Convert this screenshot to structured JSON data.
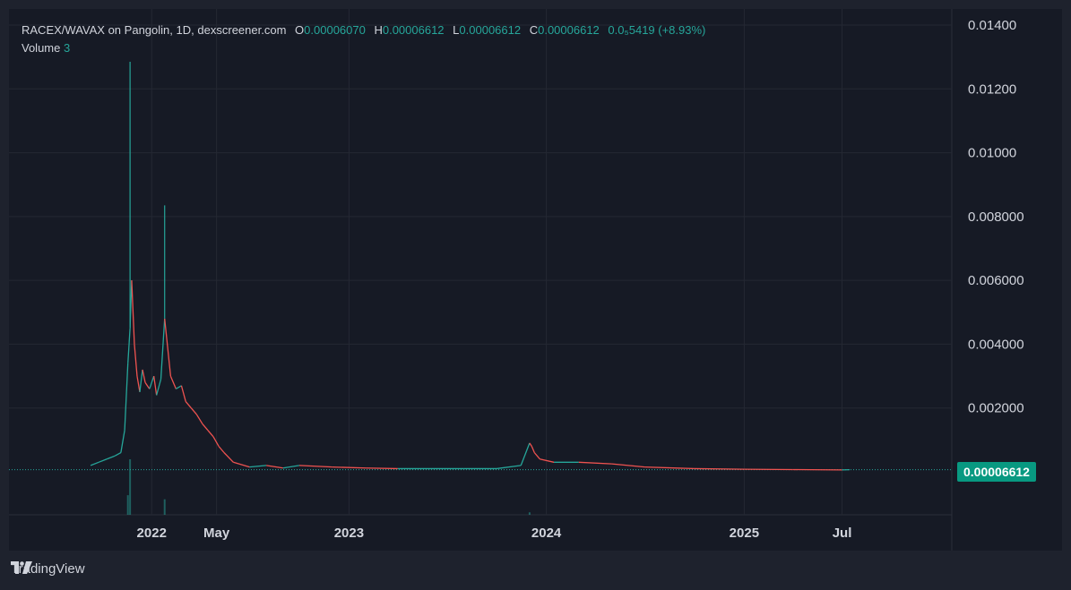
{
  "legend": {
    "pair": "RACEX/WAVAX",
    "on_word": "on",
    "exchange": "Pangolin",
    "interval": "1D",
    "source": "dexscreener.com",
    "o_label": "O",
    "o_value": "0.00006070",
    "h_label": "H",
    "h_value": "0.00006612",
    "l_label": "L",
    "l_value": "0.00006612",
    "c_label": "C",
    "c_value": "0.00006612",
    "change": "0.0₅5419 (+8.93%)",
    "volume_label": "Volume",
    "volume_value": "3"
  },
  "colors": {
    "background": "#161a25",
    "up": "#26a69a",
    "down": "#ef5350",
    "grid": "#242833",
    "axis_text": "#d1d4dc",
    "price_tag": "#089981"
  },
  "price_tag": "0.00006612",
  "footer": {
    "brand": "TradingView",
    "logo_icon": "tradingview-logo-icon"
  },
  "chart_data": {
    "type": "line",
    "title": "RACEX/WAVAX on Pangolin, 1D, dexscreener.com",
    "xlabel": "",
    "ylabel": "",
    "ylim": [
      0,
      0.014
    ],
    "grid": true,
    "y_ticks": [
      "0.002000",
      "0.004000",
      "0.006000",
      "0.008000",
      "0.01000",
      "0.01200",
      "0.01400"
    ],
    "y_tick_values": [
      0.002,
      0.004,
      0.006,
      0.008,
      0.01,
      0.012,
      0.014
    ],
    "x_ticks": [
      "2022",
      "May",
      "2023",
      "2024",
      "2025",
      "Jul"
    ],
    "x_tick_dates": [
      "2022-01-01",
      "2022-05-01",
      "2023-01-01",
      "2024-01-01",
      "2025-01-01",
      "2025-07-01"
    ],
    "last_price": 6.612e-05,
    "series": [
      {
        "type": "price",
        "x": [
          "2021-09-10",
          "2021-09-25",
          "2021-10-10",
          "2021-10-25",
          "2021-11-05",
          "2021-11-12",
          "2021-11-18",
          "2021-11-22",
          "2021-11-25",
          "2021-11-30",
          "2021-12-05",
          "2021-12-10",
          "2021-12-15",
          "2021-12-20",
          "2021-12-28",
          "2022-01-05",
          "2022-01-10",
          "2022-01-18",
          "2022-01-25",
          "2022-02-05",
          "2022-02-15",
          "2022-02-25",
          "2022-03-05",
          "2022-03-15",
          "2022-03-25",
          "2022-04-05",
          "2022-04-15",
          "2022-04-25",
          "2022-05-05",
          "2022-05-15",
          "2022-06-01",
          "2022-07-01",
          "2022-08-01",
          "2022-09-01",
          "2022-10-01",
          "2022-12-01",
          "2023-02-01",
          "2023-04-01",
          "2023-06-01",
          "2023-08-01",
          "2023-10-01",
          "2023-11-15",
          "2023-12-01",
          "2023-12-05",
          "2023-12-10",
          "2023-12-20",
          "2024-01-15",
          "2024-03-01",
          "2024-05-01",
          "2024-07-01",
          "2024-10-01",
          "2025-01-01",
          "2025-04-01",
          "2025-07-01",
          "2025-07-15"
        ],
        "values": [
          0.0002,
          0.0003,
          0.0004,
          0.0005,
          0.0006,
          0.0013,
          0.0034,
          0.0045,
          0.006,
          0.004,
          0.003,
          0.0025,
          0.0032,
          0.0028,
          0.0026,
          0.003,
          0.0024,
          0.0029,
          0.0048,
          0.003,
          0.0026,
          0.0027,
          0.0022,
          0.002,
          0.0018,
          0.0015,
          0.0013,
          0.0011,
          0.0008,
          0.0006,
          0.0003,
          0.00015,
          0.0002,
          0.00012,
          0.0002,
          0.00015,
          0.00012,
          0.0001,
          0.0001,
          0.0001,
          0.0001,
          0.0002,
          0.0009,
          0.0008,
          0.0006,
          0.0004,
          0.0003,
          0.0003,
          0.00025,
          0.00015,
          0.0001,
          8e-05,
          7e-05,
          6e-05,
          6.612e-05
        ],
        "high_spikes": [
          {
            "x": "2021-11-22",
            "value": 0.01285
          },
          {
            "x": "2022-01-25",
            "value": 0.00835
          }
        ]
      },
      {
        "type": "volume",
        "x": [
          "2021-11-18",
          "2021-11-22",
          "2022-01-25",
          "2023-12-01"
        ],
        "values": [
          120,
          340,
          95,
          15
        ]
      }
    ]
  }
}
